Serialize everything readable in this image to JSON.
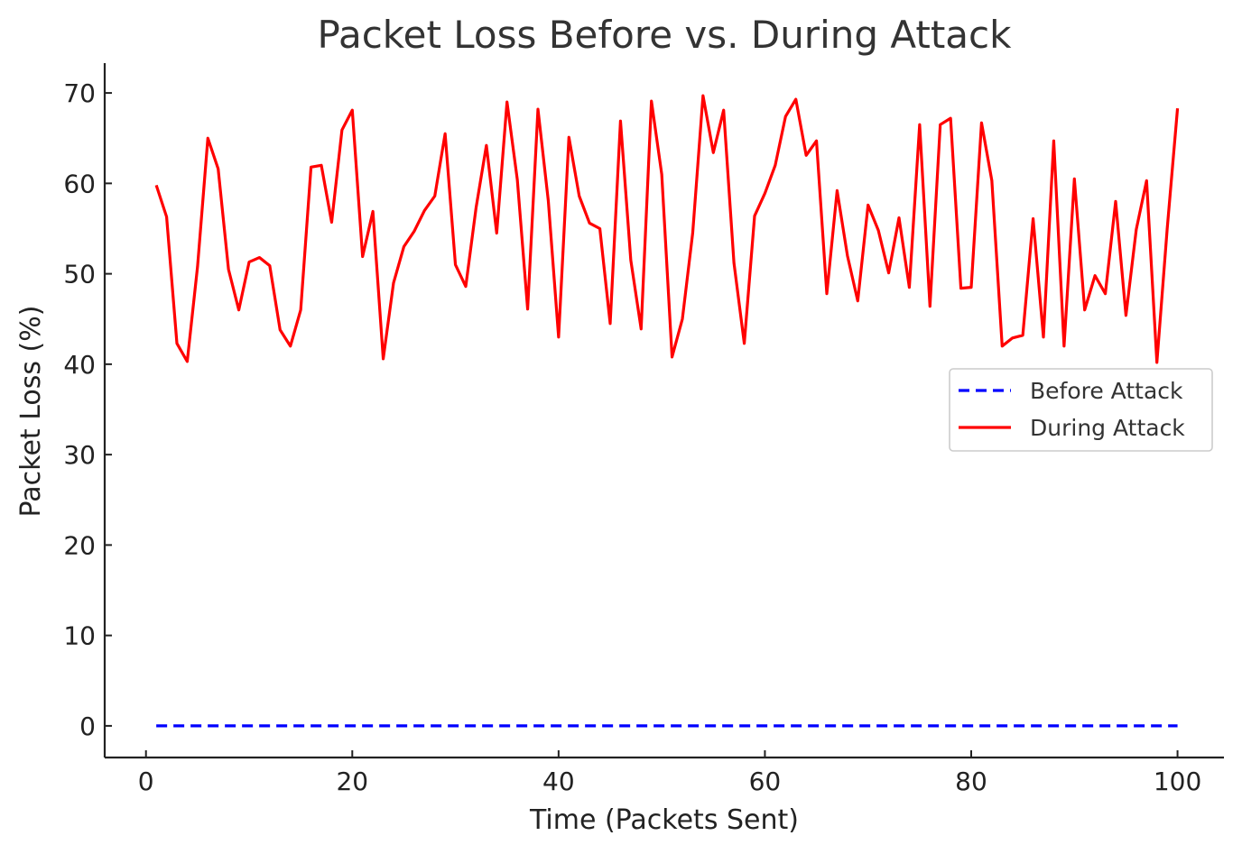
{
  "chart_data": {
    "type": "line",
    "title": "Packet Loss Before vs. During Attack",
    "xlabel": "Time (Packets Sent)",
    "ylabel": "Packet Loss (%)",
    "xlim": [
      -4.0,
      104.5
    ],
    "ylim": [
      -3.5,
      73.3
    ],
    "xticks": [
      0,
      20,
      40,
      60,
      80,
      100
    ],
    "yticks": [
      0,
      10,
      20,
      30,
      40,
      50,
      60,
      70
    ],
    "grid": false,
    "legend_position": "center-right",
    "x": [
      1,
      2,
      3,
      4,
      5,
      6,
      7,
      8,
      9,
      10,
      11,
      12,
      13,
      14,
      15,
      16,
      17,
      18,
      19,
      20,
      21,
      22,
      23,
      24,
      25,
      26,
      27,
      28,
      29,
      30,
      31,
      32,
      33,
      34,
      35,
      36,
      37,
      38,
      39,
      40,
      41,
      42,
      43,
      44,
      45,
      46,
      47,
      48,
      49,
      50,
      51,
      52,
      53,
      54,
      55,
      56,
      57,
      58,
      59,
      60,
      61,
      62,
      63,
      64,
      65,
      66,
      67,
      68,
      69,
      70,
      71,
      72,
      73,
      74,
      75,
      76,
      77,
      78,
      79,
      80,
      81,
      82,
      83,
      84,
      85,
      86,
      87,
      88,
      89,
      90,
      91,
      92,
      93,
      94,
      95,
      96,
      97,
      98,
      99,
      100
    ],
    "series": [
      {
        "name": "Before Attack",
        "color": "#0000ff",
        "style": "dashed",
        "values": [
          0,
          0,
          0,
          0,
          0,
          0,
          0,
          0,
          0,
          0,
          0,
          0,
          0,
          0,
          0,
          0,
          0,
          0,
          0,
          0,
          0,
          0,
          0,
          0,
          0,
          0,
          0,
          0,
          0,
          0,
          0,
          0,
          0,
          0,
          0,
          0,
          0,
          0,
          0,
          0,
          0,
          0,
          0,
          0,
          0,
          0,
          0,
          0,
          0,
          0,
          0,
          0,
          0,
          0,
          0,
          0,
          0,
          0,
          0,
          0,
          0,
          0,
          0,
          0,
          0,
          0,
          0,
          0,
          0,
          0,
          0,
          0,
          0,
          0,
          0,
          0,
          0,
          0,
          0,
          0,
          0,
          0,
          0,
          0,
          0,
          0,
          0,
          0,
          0,
          0,
          0,
          0,
          0,
          0,
          0,
          0,
          0,
          0,
          0,
          0
        ]
      },
      {
        "name": "During Attack",
        "color": "#ff0000",
        "style": "solid",
        "values": [
          59.8,
          56.3,
          42.3,
          40.3,
          50.8,
          65.0,
          61.6,
          50.5,
          46.0,
          51.3,
          51.8,
          50.9,
          43.8,
          42.0,
          46.0,
          61.8,
          62.0,
          55.7,
          65.9,
          68.1,
          51.9,
          56.9,
          40.6,
          49.0,
          53.0,
          54.7,
          57.0,
          58.6,
          65.5,
          51.0,
          48.6,
          57.3,
          64.2,
          54.5,
          69.0,
          60.4,
          46.1,
          68.2,
          58.1,
          43.0,
          65.1,
          58.6,
          55.6,
          55.0,
          44.5,
          66.9,
          51.5,
          43.9,
          69.1,
          61.0,
          40.8,
          45.0,
          54.5,
          69.7,
          63.4,
          68.1,
          51.2,
          42.3,
          56.4,
          58.9,
          62.0,
          67.4,
          69.3,
          63.1,
          64.7,
          47.8,
          59.2,
          52.0,
          47.0,
          57.6,
          54.8,
          50.1,
          56.2,
          48.5,
          66.5,
          46.4,
          66.5,
          67.2,
          48.4,
          48.5,
          66.7,
          60.3,
          42.0,
          42.9,
          43.2,
          56.1,
          43.0,
          64.7,
          42.0,
          60.5,
          46.0,
          49.8,
          47.8,
          58.0,
          45.4,
          54.9,
          60.3,
          40.2,
          55.0,
          68.3
        ]
      }
    ]
  }
}
